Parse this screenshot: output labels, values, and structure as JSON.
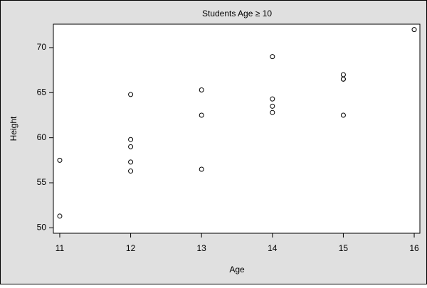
{
  "chart_data": {
    "type": "scatter",
    "title": "Students Age ≥ 10",
    "x_label": "Age",
    "y_label": "Height",
    "series": [
      {
        "name": "Height",
        "color": "#000000",
        "x": [
          14,
          13,
          13,
          14,
          14,
          12,
          12,
          15,
          13,
          12,
          11,
          14,
          12,
          15,
          16,
          12,
          15,
          11,
          15
        ],
        "values": [
          69.0,
          56.5,
          65.3,
          62.8,
          63.5,
          57.3,
          59.8,
          62.5,
          62.5,
          59.0,
          51.3,
          64.3,
          56.3,
          66.5,
          72.0,
          64.8,
          67.0,
          57.5,
          66.5
        ]
      }
    ],
    "xlim": [
      10.91,
      16.08
    ],
    "xticks": [
      11,
      12,
      13,
      14,
      15,
      16
    ],
    "ylim": [
      49.4,
      72.6
    ],
    "yticks": [
      50,
      55,
      60,
      65,
      70
    ]
  }
}
